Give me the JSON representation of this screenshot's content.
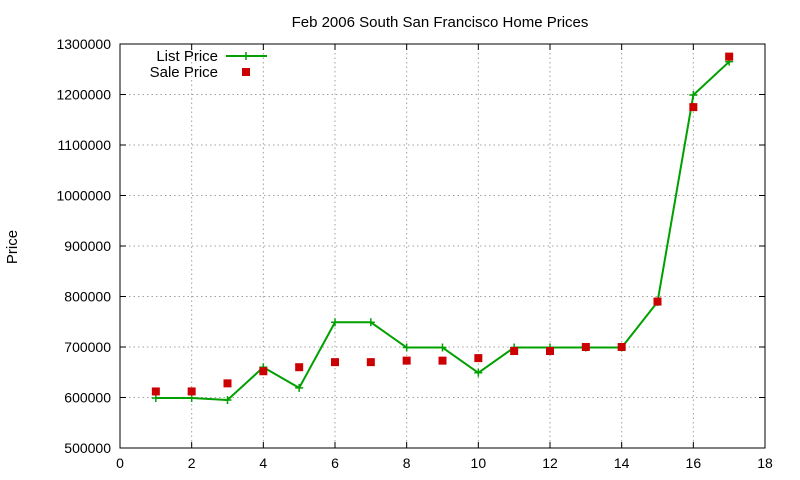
{
  "chart_data": {
    "type": "line",
    "title": "Feb 2006 South San Francisco Home Prices",
    "xlabel": "",
    "ylabel": "Price",
    "xlim": [
      0,
      18
    ],
    "ylim": [
      500000,
      1300000
    ],
    "xticks": [
      0,
      2,
      4,
      6,
      8,
      10,
      12,
      14,
      16,
      18
    ],
    "yticks": [
      500000,
      600000,
      700000,
      800000,
      900000,
      1000000,
      1100000,
      1200000,
      1300000
    ],
    "grid": true,
    "legend_position": "top-left",
    "series": [
      {
        "name": "List Price",
        "style": "line-with-plus-markers",
        "color": "#00a000",
        "x": [
          1,
          2,
          3,
          4,
          5,
          6,
          7,
          8,
          9,
          10,
          11,
          12,
          13,
          14,
          15,
          16,
          17
        ],
        "y": [
          599000,
          599000,
          595000,
          660000,
          619000,
          749000,
          749000,
          699000,
          699000,
          649000,
          699000,
          699000,
          699000,
          699000,
          789000,
          1199000,
          1265000
        ]
      },
      {
        "name": "Sale Price",
        "style": "square-markers",
        "color": "#cc0000",
        "x": [
          1,
          2,
          3,
          4,
          5,
          6,
          7,
          8,
          9,
          10,
          11,
          12,
          13,
          14,
          15,
          16,
          17
        ],
        "y": [
          612000,
          612000,
          628000,
          652000,
          660000,
          670000,
          670000,
          673000,
          673000,
          678000,
          692000,
          692000,
          700000,
          700000,
          790000,
          1175000,
          1275000
        ]
      }
    ]
  }
}
